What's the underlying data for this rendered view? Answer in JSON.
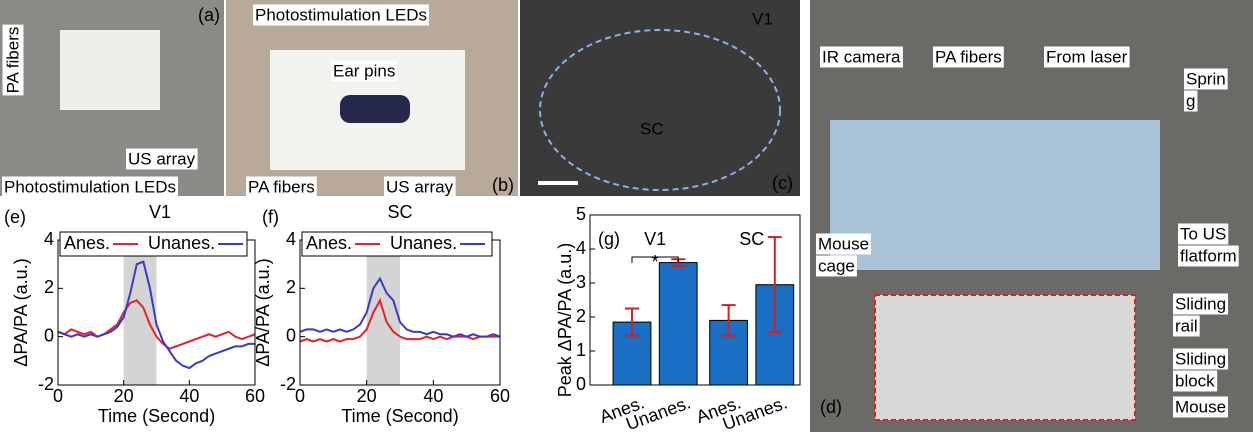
{
  "images": [
    {
      "label": "(a)",
      "annotations": [
        [
          "PA fibers"
        ],
        [
          "US array"
        ],
        [
          "Photostimulation LEDs"
        ]
      ]
    },
    {
      "label": "(b)",
      "annotations": [
        [
          "Photostimulation LEDs"
        ],
        [
          "Ear pins"
        ],
        [
          "PA fibers"
        ],
        [
          "US array"
        ]
      ]
    },
    {
      "label": "(c)",
      "annotations": [
        [
          "V1"
        ],
        [
          "SC"
        ]
      ]
    },
    {
      "label": "(d)",
      "annotations": [
        [
          "IR camera"
        ],
        [
          "PA fibers"
        ],
        [
          "From laser"
        ],
        [
          "Sprin",
          "g"
        ],
        [
          "Mouse",
          "cage"
        ],
        [
          "To US",
          "flatform"
        ],
        [
          "Sliding",
          "rail"
        ],
        [
          "Sliding",
          "block"
        ],
        [
          "Mouse"
        ]
      ]
    }
  ],
  "chart_data": [
    {
      "type": "line",
      "panel": "(e)",
      "title": "V1",
      "xlabel": "Time (Second)",
      "ylabel": "ΔPA/PA (a.u.)",
      "x": [
        0,
        2,
        4,
        6,
        8,
        10,
        12,
        14,
        16,
        18,
        20,
        22,
        24,
        26,
        28,
        30,
        32,
        34,
        36,
        38,
        40,
        42,
        44,
        46,
        48,
        50,
        52,
        54,
        56,
        58,
        60
      ],
      "highlight_x": [
        20,
        30
      ],
      "series": [
        {
          "name": "Anes.",
          "color": "#e8202a",
          "values": [
            0.2,
            0.1,
            0.3,
            0.2,
            0.1,
            0.2,
            0.0,
            0.1,
            0.3,
            0.5,
            1.0,
            1.4,
            1.5,
            1.2,
            0.5,
            0.0,
            -0.3,
            -0.5,
            -0.4,
            -0.3,
            -0.2,
            -0.1,
            0.0,
            0.1,
            0.0,
            0.1,
            0.2,
            0.0,
            -0.1,
            0.0,
            0.1
          ]
        },
        {
          "name": "Unanes.",
          "color": "#3a3ac8",
          "values": [
            0.2,
            0.1,
            0.0,
            0.1,
            0.0,
            0.1,
            0.0,
            0.1,
            0.2,
            0.4,
            0.8,
            1.8,
            3.0,
            3.1,
            2.0,
            0.5,
            -0.2,
            -0.6,
            -1.0,
            -1.2,
            -1.3,
            -1.1,
            -1.0,
            -0.8,
            -0.7,
            -0.6,
            -0.5,
            -0.4,
            -0.4,
            -0.3,
            -0.3
          ]
        }
      ],
      "xlim": [
        0,
        60
      ],
      "xticks": [
        0,
        20,
        40,
        60
      ],
      "ylim": [
        -2,
        4
      ],
      "yticks": [
        -2,
        0,
        2,
        4
      ]
    },
    {
      "type": "line",
      "panel": "(f)",
      "title": "SC",
      "xlabel": "Time (Second)",
      "ylabel": "ΔPA/PA (a.u.)",
      "x": [
        0,
        2,
        4,
        6,
        8,
        10,
        12,
        14,
        16,
        18,
        20,
        22,
        24,
        26,
        28,
        30,
        32,
        34,
        36,
        38,
        40,
        42,
        44,
        46,
        48,
        50,
        52,
        54,
        56,
        58,
        60
      ],
      "highlight_x": [
        20,
        30
      ],
      "series": [
        {
          "name": "Anes.",
          "color": "#e8202a",
          "values": [
            -0.2,
            -0.1,
            -0.2,
            -0.1,
            -0.2,
            -0.1,
            -0.2,
            -0.1,
            -0.1,
            0.0,
            0.3,
            1.0,
            1.5,
            0.6,
            0.2,
            0.0,
            -0.1,
            -0.1,
            -0.1,
            0.0,
            -0.1,
            0.0,
            -0.1,
            0.0,
            0.0,
            0.0,
            -0.1,
            0.0,
            0.0,
            0.0,
            0.0
          ]
        },
        {
          "name": "Unanes.",
          "color": "#3a3ac8",
          "values": [
            0.2,
            0.3,
            0.3,
            0.2,
            0.3,
            0.2,
            0.3,
            0.2,
            0.3,
            0.5,
            1.0,
            2.0,
            2.4,
            1.8,
            1.5,
            0.6,
            0.3,
            0.2,
            0.2,
            0.1,
            0.2,
            0.1,
            0.1,
            0.0,
            0.1,
            0.0,
            0.1,
            0.0,
            0.0,
            0.1,
            0.0
          ]
        }
      ],
      "xlim": [
        0,
        60
      ],
      "xticks": [
        0,
        20,
        40,
        60
      ],
      "ylim": [
        -2,
        4
      ],
      "yticks": [
        -2,
        0,
        2,
        4
      ]
    },
    {
      "type": "bar",
      "panel": "(g)",
      "ylabel": "Peak ΔPA/PA (a.u.)",
      "categories": [
        "Anes.",
        "Unanes.",
        "Anes.",
        "Unanes."
      ],
      "groups": [
        "V1",
        "SC"
      ],
      "annotation": "*",
      "values": [
        1.85,
        3.6,
        1.9,
        2.95
      ],
      "errors": [
        0.4,
        0.1,
        0.45,
        1.4
      ],
      "color": "#1a6fc4",
      "error_color": "#d42020",
      "ylim": [
        0,
        5
      ],
      "yticks": [
        0,
        1,
        2,
        3,
        4,
        5
      ]
    }
  ]
}
